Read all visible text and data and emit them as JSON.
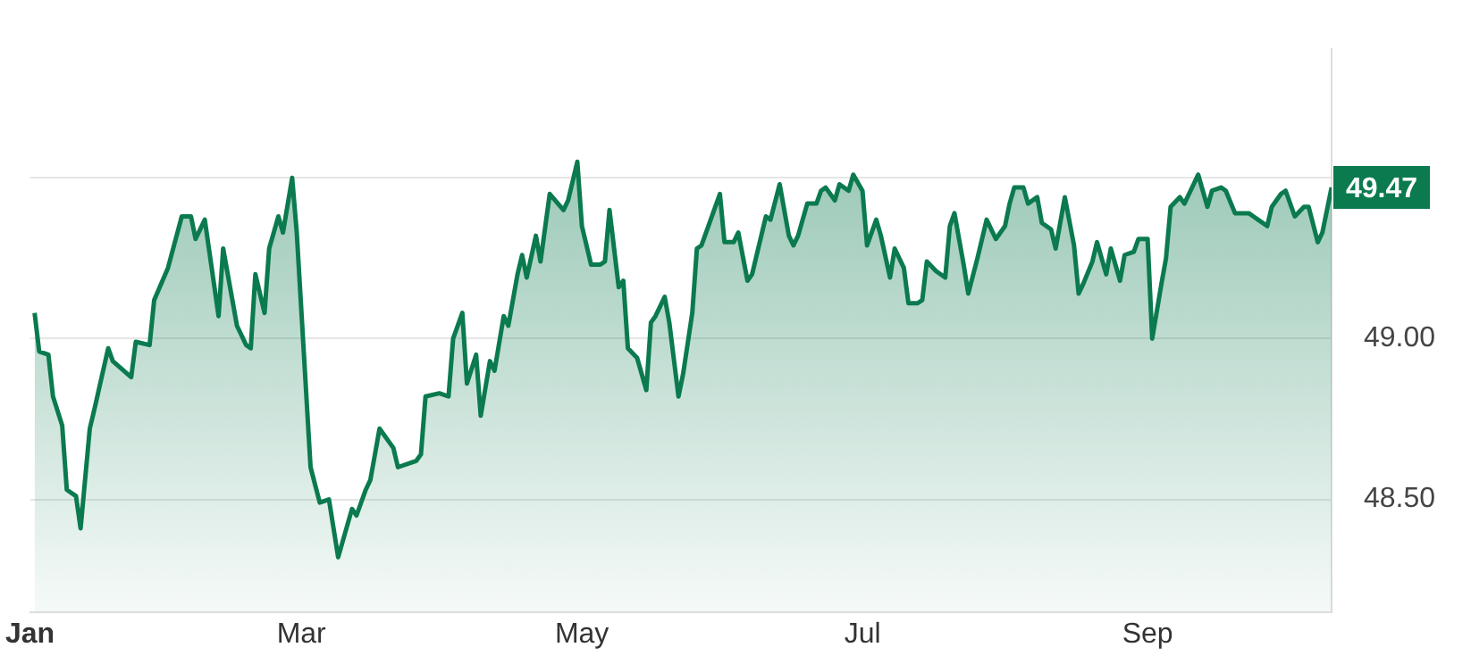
{
  "chart_data": {
    "type": "area",
    "color": "#0b7a4f",
    "marker": "none",
    "grid": "y",
    "x": [
      "--01-02",
      "--01-03",
      "--01-05",
      "--01-06",
      "--01-08",
      "--01-09",
      "--01-11",
      "--01-12",
      "--01-14",
      "--01-15",
      "--01-18",
      "--01-19",
      "--01-23",
      "--01-24",
      "--01-27",
      "--01-28",
      "--01-31",
      "--02-03",
      "--02-05",
      "--02-06",
      "--02-08",
      "--02-11",
      "--02-12",
      "--02-15",
      "--02-17",
      "--02-18",
      "--02-19",
      "--02-21",
      "--02-22",
      "--02-24",
      "--02-25",
      "--02-27",
      "--02-28",
      "--03-03",
      "--03-05",
      "--03-07",
      "--03-09",
      "--03-12",
      "--03-13",
      "--03-15",
      "--03-16",
      "--03-18",
      "--03-21",
      "--03-22",
      "--03-26",
      "--03-27",
      "--03-28",
      "--03-31",
      "--04-02",
      "--04-03",
      "--04-05",
      "--04-06",
      "--04-08",
      "--04-09",
      "--04-11",
      "--04-12",
      "--04-14",
      "--04-15",
      "--04-17",
      "--04-18",
      "--04-19",
      "--04-21",
      "--04-22",
      "--04-24",
      "--04-27",
      "--04-28",
      "--04-30",
      "--05-01",
      "--05-03",
      "--05-05",
      "--05-06",
      "--05-07",
      "--05-09",
      "--05-10",
      "--05-11",
      "--05-13",
      "--05-15",
      "--05-16",
      "--05-17",
      "--05-19",
      "--05-20",
      "--05-22",
      "--05-23",
      "--05-25",
      "--05-26",
      "--05-27",
      "--05-31",
      "--06-01",
      "--06-03",
      "--06-04",
      "--06-06",
      "--06-07",
      "--06-10",
      "--06-11",
      "--06-13",
      "--06-15",
      "--06-16",
      "--06-17",
      "--06-19",
      "--06-21",
      "--06-22",
      "--06-23",
      "--06-25",
      "--06-26",
      "--06-28",
      "--06-29",
      "--07-01",
      "--07-02",
      "--07-04",
      "--07-05",
      "--07-07",
      "--07-08",
      "--07-10",
      "--07-11",
      "--07-13",
      "--07-14",
      "--07-15",
      "--07-17",
      "--07-19",
      "--07-20",
      "--07-21",
      "--07-23",
      "--07-24",
      "--07-26",
      "--07-28",
      "--07-30",
      "--08-01",
      "--08-02",
      "--08-03",
      "--08-05",
      "--08-06",
      "--08-08",
      "--08-09",
      "--08-11",
      "--08-12",
      "--08-14",
      "--08-16",
      "--08-17",
      "--08-18",
      "--08-20",
      "--08-21",
      "--08-23",
      "--08-24",
      "--08-26",
      "--08-27",
      "--08-29",
      "--08-30",
      "--09-01",
      "--09-02",
      "--09-04",
      "--09-05",
      "--09-06",
      "--09-08",
      "--09-09",
      "--09-11",
      "--09-12",
      "--09-14",
      "--09-15",
      "--09-17",
      "--09-18",
      "--09-20",
      "--09-23",
      "--09-24",
      "--09-25",
      "--09-27",
      "--09-28",
      "--09-30",
      "--10-01",
      "--10-03",
      "--10-05",
      "--10-06",
      "--10-08",
      "--10-09",
      "--10-11"
    ],
    "values": [
      49.08,
      48.96,
      48.95,
      48.82,
      48.73,
      48.53,
      48.51,
      48.41,
      48.72,
      48.78,
      48.97,
      48.93,
      48.88,
      48.99,
      48.98,
      49.12,
      49.22,
      49.38,
      49.38,
      49.31,
      49.37,
      49.07,
      49.28,
      49.04,
      48.98,
      48.97,
      49.2,
      49.08,
      49.28,
      49.38,
      49.33,
      49.5,
      49.33,
      48.6,
      48.49,
      48.5,
      48.32,
      48.47,
      48.45,
      48.53,
      48.56,
      48.72,
      48.66,
      48.6,
      48.62,
      48.64,
      48.82,
      48.83,
      48.82,
      49.0,
      49.08,
      48.86,
      48.95,
      48.76,
      48.93,
      48.9,
      49.07,
      49.04,
      49.2,
      49.26,
      49.19,
      49.32,
      49.24,
      49.45,
      49.4,
      49.43,
      49.55,
      49.35,
      49.23,
      49.23,
      49.24,
      49.4,
      49.16,
      49.18,
      48.97,
      48.94,
      48.84,
      49.05,
      49.07,
      49.13,
      49.05,
      48.82,
      48.89,
      49.08,
      49.28,
      49.29,
      49.45,
      49.3,
      49.3,
      49.33,
      49.18,
      49.2,
      49.38,
      49.37,
      49.48,
      49.32,
      49.29,
      49.32,
      49.42,
      49.42,
      49.46,
      49.47,
      49.43,
      49.48,
      49.46,
      49.51,
      49.46,
      49.29,
      49.37,
      49.32,
      49.19,
      49.28,
      49.22,
      49.11,
      49.11,
      49.12,
      49.24,
      49.21,
      49.19,
      49.35,
      49.39,
      49.23,
      49.14,
      49.25,
      49.37,
      49.31,
      49.35,
      49.42,
      49.47,
      49.47,
      49.42,
      49.44,
      49.36,
      49.34,
      49.28,
      49.44,
      49.29,
      49.14,
      49.17,
      49.24,
      49.3,
      49.2,
      49.28,
      49.18,
      49.26,
      49.27,
      49.31,
      49.31,
      49.0,
      49.17,
      49.25,
      49.41,
      49.44,
      49.42,
      49.48,
      49.51,
      49.41,
      49.46,
      49.47,
      49.46,
      49.39,
      49.39,
      49.38,
      49.37,
      49.35,
      49.41,
      49.45,
      49.46,
      49.38,
      49.41,
      49.41,
      49.3,
      49.33,
      49.47
    ],
    "xlim": [
      "--01-01",
      "--10-11"
    ],
    "xticks": [
      {
        "value": "--01-01",
        "label": "Jan"
      },
      {
        "value": "--03-01",
        "label": "Mar"
      },
      {
        "value": "--05-01",
        "label": "May"
      },
      {
        "value": "--07-01",
        "label": "Jul"
      },
      {
        "value": "--09-01",
        "label": "Sep"
      }
    ],
    "ylim": [
      48.15,
      49.9
    ],
    "yticks": [
      {
        "value": 48.5,
        "label": "48.50"
      },
      {
        "value": 49,
        "label": "49.00"
      },
      {
        "value": 49.5,
        "label": null
      }
    ],
    "annotations": [
      {
        "text": "49.47",
        "x": "--10-11",
        "y": 49.47
      }
    ]
  }
}
